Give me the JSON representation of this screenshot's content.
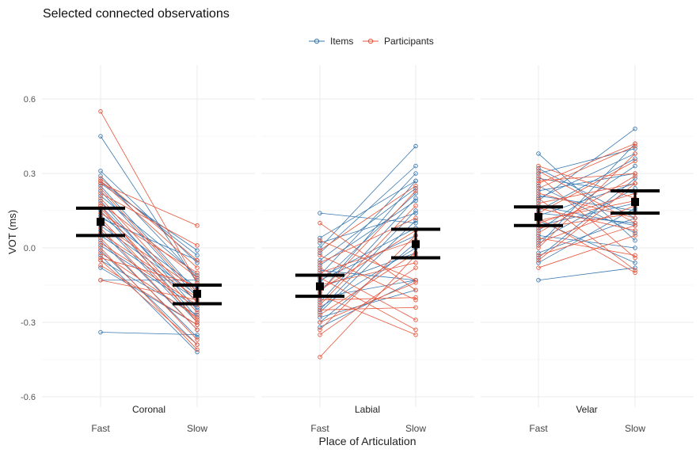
{
  "chart_data": {
    "type": "line",
    "title": "Selected connected observations",
    "xlabel": "Place of Articulation",
    "ylabel": "VOT (ms)",
    "ylim": [
      -0.6,
      0.6
    ],
    "yticks": [
      "0.6",
      "0.3",
      "0.0",
      "-0.3",
      "-0.6"
    ],
    "ytick_values": [
      0.6,
      0.3,
      0.0,
      -0.3,
      -0.6
    ],
    "categories": [
      "Fast",
      "Slow"
    ],
    "grid": true,
    "legend_position": "top",
    "legend": [
      {
        "label": "Items",
        "color": "#3a78b0"
      },
      {
        "label": "Participants",
        "color": "#e8553a"
      }
    ],
    "panels": [
      {
        "name": "Coronal",
        "summary": {
          "fast": {
            "mean": 0.105,
            "lower": 0.05,
            "upper": 0.16
          },
          "slow": {
            "mean": -0.185,
            "lower": -0.225,
            "upper": -0.15
          }
        },
        "series": [
          {
            "name": "Items",
            "pairs": [
              [
                0.45,
                -0.14
              ],
              [
                0.31,
                -0.06
              ],
              [
                0.29,
                -0.12
              ],
              [
                0.27,
                -0.03
              ],
              [
                0.25,
                -0.18
              ],
              [
                0.23,
                -0.2
              ],
              [
                0.21,
                -0.11
              ],
              [
                0.19,
                -0.25
              ],
              [
                0.17,
                -0.22
              ],
              [
                0.15,
                -0.28
              ],
              [
                0.13,
                -0.16
              ],
              [
                0.11,
                -0.3
              ],
              [
                0.09,
                -0.19
              ],
              [
                0.07,
                -0.33
              ],
              [
                0.05,
                -0.21
              ],
              [
                0.03,
                -0.36
              ],
              [
                0.01,
                -0.24
              ],
              [
                -0.01,
                -0.39
              ],
              [
                -0.03,
                -0.42
              ],
              [
                -0.05,
                -0.27
              ],
              [
                -0.08,
                -0.31
              ],
              [
                -0.13,
                -0.13
              ],
              [
                -0.34,
                -0.35
              ],
              [
                0.26,
                -0.01
              ],
              [
                0.12,
                -0.05
              ]
            ]
          },
          {
            "name": "Participants",
            "pairs": [
              [
                0.55,
                -0.14
              ],
              [
                0.28,
                -0.05
              ],
              [
                0.26,
                0.09
              ],
              [
                0.24,
                -0.19
              ],
              [
                0.22,
                0.01
              ],
              [
                0.2,
                -0.22
              ],
              [
                0.18,
                -0.12
              ],
              [
                0.16,
                -0.26
              ],
              [
                0.14,
                -0.1
              ],
              [
                0.12,
                -0.29
              ],
              [
                0.1,
                -0.17
              ],
              [
                0.08,
                -0.33
              ],
              [
                0.06,
                -0.2
              ],
              [
                0.04,
                -0.37
              ],
              [
                0.02,
                -0.23
              ],
              [
                0.0,
                -0.41
              ],
              [
                -0.02,
                -0.28
              ],
              [
                -0.04,
                -0.15
              ],
              [
                -0.07,
                -0.31
              ],
              [
                -0.13,
                -0.21
              ],
              [
                0.27,
                -0.08
              ],
              [
                0.17,
                -0.3
              ],
              [
                -0.05,
                -0.39
              ]
            ]
          }
        ]
      },
      {
        "name": "Labial",
        "summary": {
          "fast": {
            "mean": -0.155,
            "lower": -0.195,
            "upper": -0.11
          },
          "slow": {
            "mean": 0.015,
            "lower": -0.04,
            "upper": 0.075
          }
        },
        "series": [
          {
            "name": "Items",
            "pairs": [
              [
                0.14,
                0.1
              ],
              [
                0.04,
                0.27
              ],
              [
                0.02,
                0.14
              ],
              [
                0.0,
                0.41
              ],
              [
                -0.02,
                0.33
              ],
              [
                -0.05,
                0.24
              ],
              [
                -0.07,
                0.19
              ],
              [
                -0.09,
                -0.13
              ],
              [
                -0.11,
                0.3
              ],
              [
                -0.13,
                0.05
              ],
              [
                -0.14,
                0.22
              ],
              [
                -0.16,
                -0.02
              ],
              [
                -0.18,
                0.27
              ],
              [
                -0.2,
                -0.13
              ],
              [
                -0.22,
                0.2
              ],
              [
                -0.24,
                0.0
              ],
              [
                -0.26,
                0.11
              ],
              [
                -0.28,
                -0.17
              ],
              [
                -0.3,
                0.02
              ],
              [
                -0.32,
                -0.13
              ],
              [
                -0.12,
                0.08
              ],
              [
                -0.25,
                0.15
              ]
            ]
          },
          {
            "name": "Participants",
            "pairs": [
              [
                0.1,
                -0.17
              ],
              [
                0.03,
                -0.13
              ],
              [
                -0.01,
                0.25
              ],
              [
                -0.03,
                -0.21
              ],
              [
                -0.06,
                0.12
              ],
              [
                -0.08,
                -0.29
              ],
              [
                -0.1,
                0.03
              ],
              [
                -0.12,
                -0.33
              ],
              [
                -0.15,
                -0.06
              ],
              [
                -0.17,
                0.07
              ],
              [
                -0.19,
                -0.35
              ],
              [
                -0.21,
                -0.2
              ],
              [
                -0.23,
                0.17
              ],
              [
                -0.25,
                -0.24
              ],
              [
                -0.27,
                -0.02
              ],
              [
                -0.3,
                -0.14
              ],
              [
                -0.33,
                0.05
              ],
              [
                -0.44,
                -0.03
              ],
              [
                -0.35,
                -0.08
              ],
              [
                -0.18,
                0.23
              ]
            ]
          }
        ]
      },
      {
        "name": "Velar",
        "summary": {
          "fast": {
            "mean": 0.125,
            "lower": 0.09,
            "upper": 0.165
          },
          "slow": {
            "mean": 0.185,
            "lower": 0.14,
            "upper": 0.23
          }
        },
        "series": [
          {
            "name": "Items",
            "pairs": [
              [
                0.38,
                0.03
              ],
              [
                0.32,
                0.12
              ],
              [
                0.3,
                0.4
              ],
              [
                0.28,
                0.22
              ],
              [
                0.25,
                0.06
              ],
              [
                0.23,
                0.3
              ],
              [
                0.21,
                0.15
              ],
              [
                0.19,
                0.48
              ],
              [
                0.17,
                0.09
              ],
              [
                0.15,
                0.36
              ],
              [
                0.13,
                0.26
              ],
              [
                0.11,
                -0.06
              ],
              [
                0.09,
                0.18
              ],
              [
                0.07,
                0.33
              ],
              [
                0.05,
                0.0
              ],
              [
                0.03,
                0.24
              ],
              [
                0.01,
                0.42
              ],
              [
                -0.02,
                0.12
              ],
              [
                -0.04,
                0.28
              ],
              [
                -0.06,
                0.16
              ],
              [
                -0.13,
                -0.08
              ],
              [
                0.2,
                0.38
              ],
              [
                0.14,
                0.1
              ]
            ]
          },
          {
            "name": "Participants",
            "pairs": [
              [
                0.33,
                0.2
              ],
              [
                0.31,
                0.1
              ],
              [
                0.29,
                -0.04
              ],
              [
                0.27,
                0.3
              ],
              [
                0.24,
                0.41
              ],
              [
                0.22,
                0.12
              ],
              [
                0.2,
                -0.09
              ],
              [
                0.18,
                0.26
              ],
              [
                0.16,
                0.07
              ],
              [
                0.14,
                0.35
              ],
              [
                0.12,
                -0.1
              ],
              [
                0.1,
                0.22
              ],
              [
                0.08,
                0.14
              ],
              [
                0.06,
                0.29
              ],
              [
                0.04,
                -0.03
              ],
              [
                0.02,
                0.17
              ],
              [
                0.0,
                0.38
              ],
              [
                -0.03,
                0.09
              ],
              [
                -0.05,
                0.26
              ],
              [
                -0.08,
                0.05
              ],
              [
                0.26,
                0.42
              ],
              [
                0.11,
                0.19
              ]
            ]
          }
        ]
      }
    ]
  }
}
